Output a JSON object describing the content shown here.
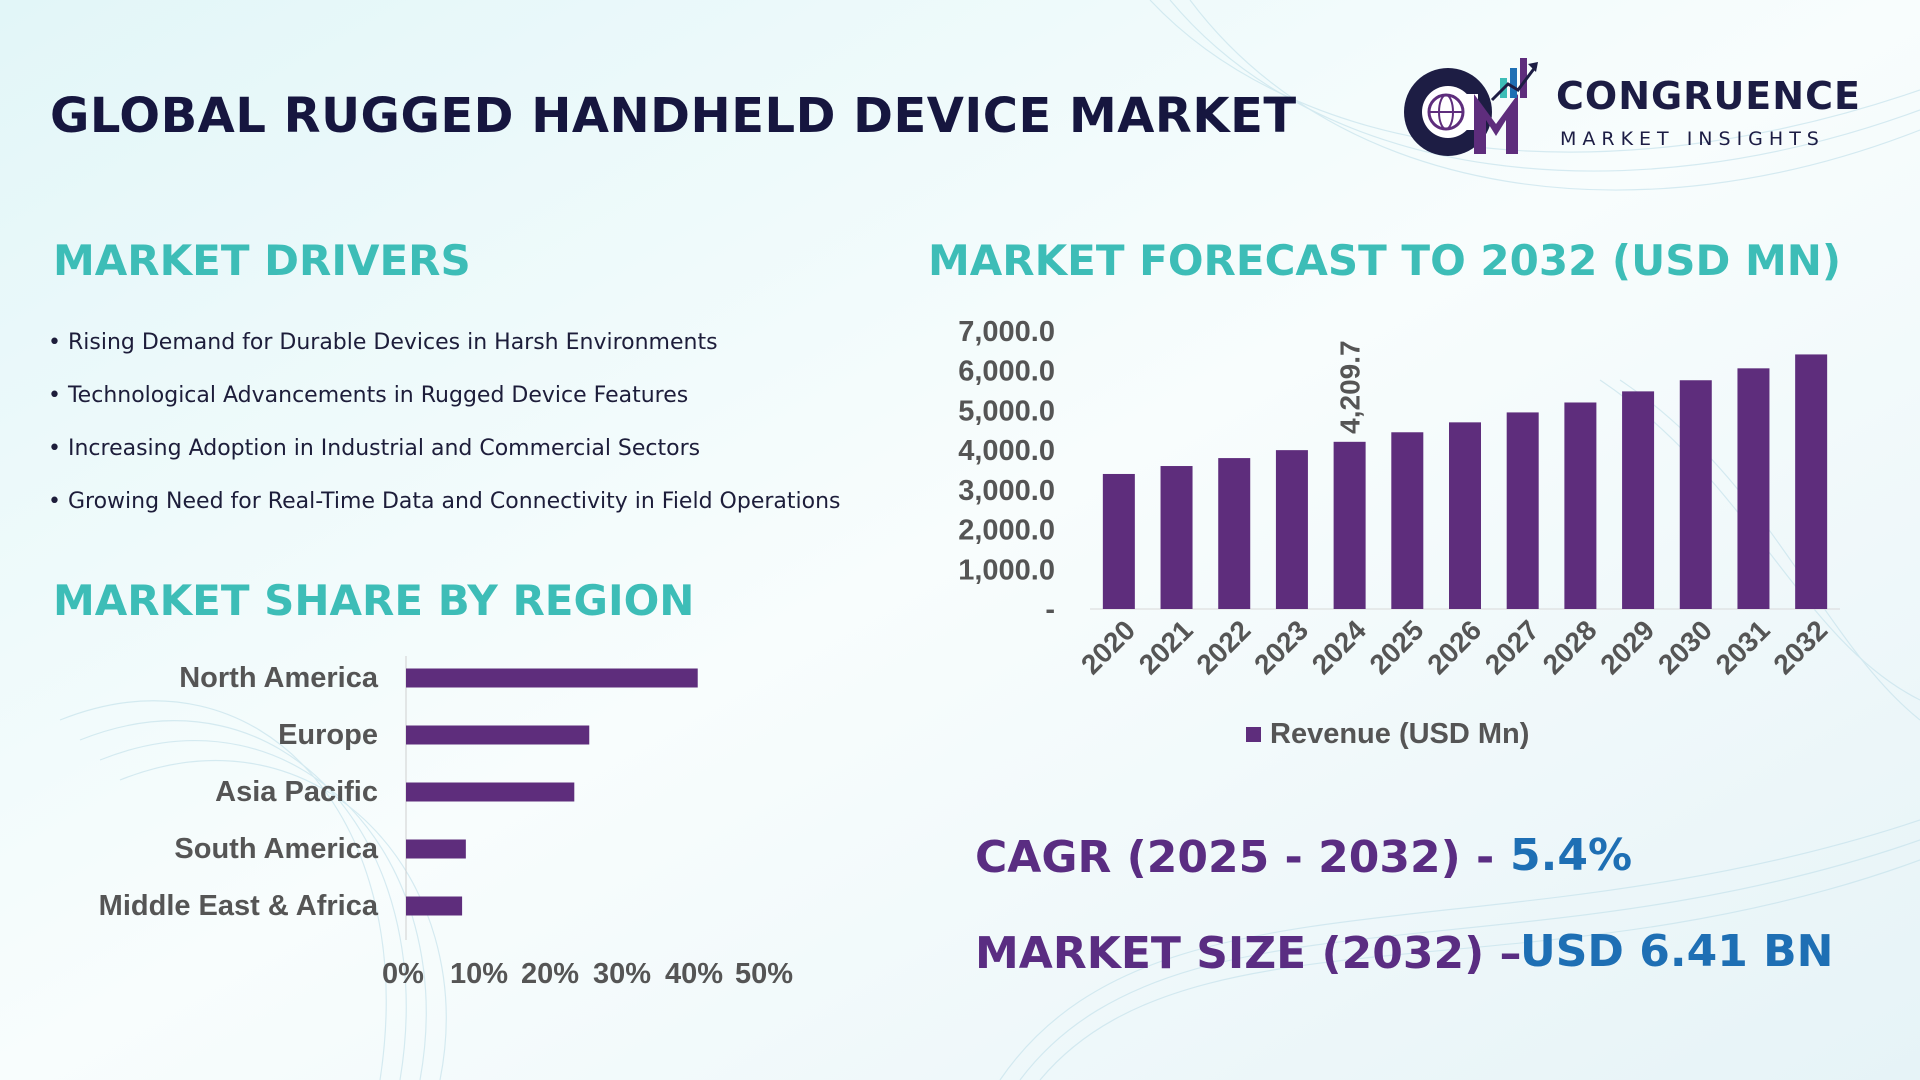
{
  "header": {
    "title": "GLOBAL RUGGED HANDHELD DEVICE MARKET"
  },
  "brand": {
    "monogram": "CM",
    "name": "CONGRUENCE",
    "tagline": "MARKET INSIGHTS"
  },
  "drivers": {
    "title": "MARKET DRIVERS",
    "items": [
      "Rising Demand for Durable Devices in Harsh Environments",
      "Technological Advancements in Rugged  Device Features",
      "Increasing Adoption in Industrial and Commercial Sectors",
      "Growing Need for Real-Time Data and Connectivity in Field Operations"
    ]
  },
  "region": {
    "title": "MARKET SHARE BY REGION"
  },
  "forecast": {
    "title": "MARKET FORECAST TO 2032 (USD MN)"
  },
  "stats": {
    "cagr_label": "CAGR (2025 - 2032) -",
    "cagr_value": "5.4%",
    "size_label": "MARKET SIZE (2032) –",
    "size_value": "USD 6.41 BN"
  },
  "colors": {
    "bar": "#5e2d7c",
    "section_title": "#3dbdb7",
    "main_title": "#16163f",
    "stat_label": "#5a2d82",
    "stat_value": "#1e6fb4"
  },
  "chart_data": [
    {
      "type": "bar",
      "orientation": "horizontal",
      "categories": [
        "North America",
        "Europe",
        "Asia Pacific",
        "South America",
        "Middle East & Africa"
      ],
      "values": [
        39,
        24.5,
        22.5,
        8,
        7.5
      ],
      "xlim": [
        0,
        50
      ],
      "x_ticks": [
        "0%",
        "10%",
        "20%",
        "30%",
        "40%",
        "50%"
      ],
      "color": "#5e2d7c"
    },
    {
      "type": "bar",
      "categories": [
        "2020",
        "2021",
        "2022",
        "2023",
        "2024",
        "2025",
        "2026",
        "2027",
        "2028",
        "2029",
        "2030",
        "2031",
        "2032"
      ],
      "series": [
        {
          "name": "Revenue (USD Mn)",
          "values": [
            3400,
            3600,
            3800,
            4000,
            4209.7,
            4450,
            4700,
            4950,
            5200,
            5480,
            5760,
            6060,
            6410
          ]
        }
      ],
      "ylim": [
        0,
        7000
      ],
      "y_ticks": [
        "-",
        "1,000.0",
        "2,000.0",
        "3,000.0",
        "4,000.0",
        "5,000.0",
        "6,000.0",
        "7,000.0"
      ],
      "data_labels": [
        {
          "category": "2024",
          "text": "4,209.7"
        }
      ],
      "legend": "bottom",
      "color": "#5e2d7c"
    }
  ]
}
